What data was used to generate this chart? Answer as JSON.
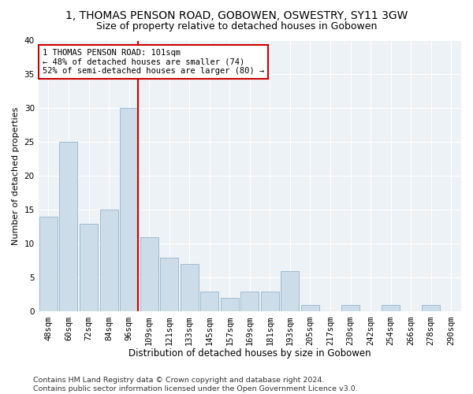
{
  "title": "1, THOMAS PENSON ROAD, GOBOWEN, OSWESTRY, SY11 3GW",
  "subtitle": "Size of property relative to detached houses in Gobowen",
  "xlabel": "Distribution of detached houses by size in Gobowen",
  "ylabel": "Number of detached properties",
  "categories": [
    "48sqm",
    "60sqm",
    "72sqm",
    "84sqm",
    "96sqm",
    "109sqm",
    "121sqm",
    "133sqm",
    "145sqm",
    "157sqm",
    "169sqm",
    "181sqm",
    "193sqm",
    "205sqm",
    "217sqm",
    "230sqm",
    "242sqm",
    "254sqm",
    "266sqm",
    "278sqm",
    "290sqm"
  ],
  "values": [
    14,
    25,
    13,
    15,
    30,
    11,
    8,
    7,
    3,
    2,
    3,
    3,
    6,
    1,
    0,
    1,
    0,
    1,
    0,
    1,
    0
  ],
  "bar_color": "#ccdce8",
  "bar_edge_color": "#a0bcd0",
  "highlight_line_color": "#cc0000",
  "highlight_bar_index": 4,
  "annotation_text": "1 THOMAS PENSON ROAD: 101sqm\n← 48% of detached houses are smaller (74)\n52% of semi-detached houses are larger (80) →",
  "annotation_fontsize": 7.5,
  "ylim": [
    0,
    40
  ],
  "yticks": [
    0,
    5,
    10,
    15,
    20,
    25,
    30,
    35,
    40
  ],
  "background_color": "#edf2f7",
  "grid_color": "#ffffff",
  "footer_text": "Contains HM Land Registry data © Crown copyright and database right 2024.\nContains public sector information licensed under the Open Government Licence v3.0.",
  "title_fontsize": 10,
  "subtitle_fontsize": 9,
  "xlabel_fontsize": 8.5,
  "ylabel_fontsize": 8,
  "tick_fontsize": 7.5,
  "footer_fontsize": 6.8
}
